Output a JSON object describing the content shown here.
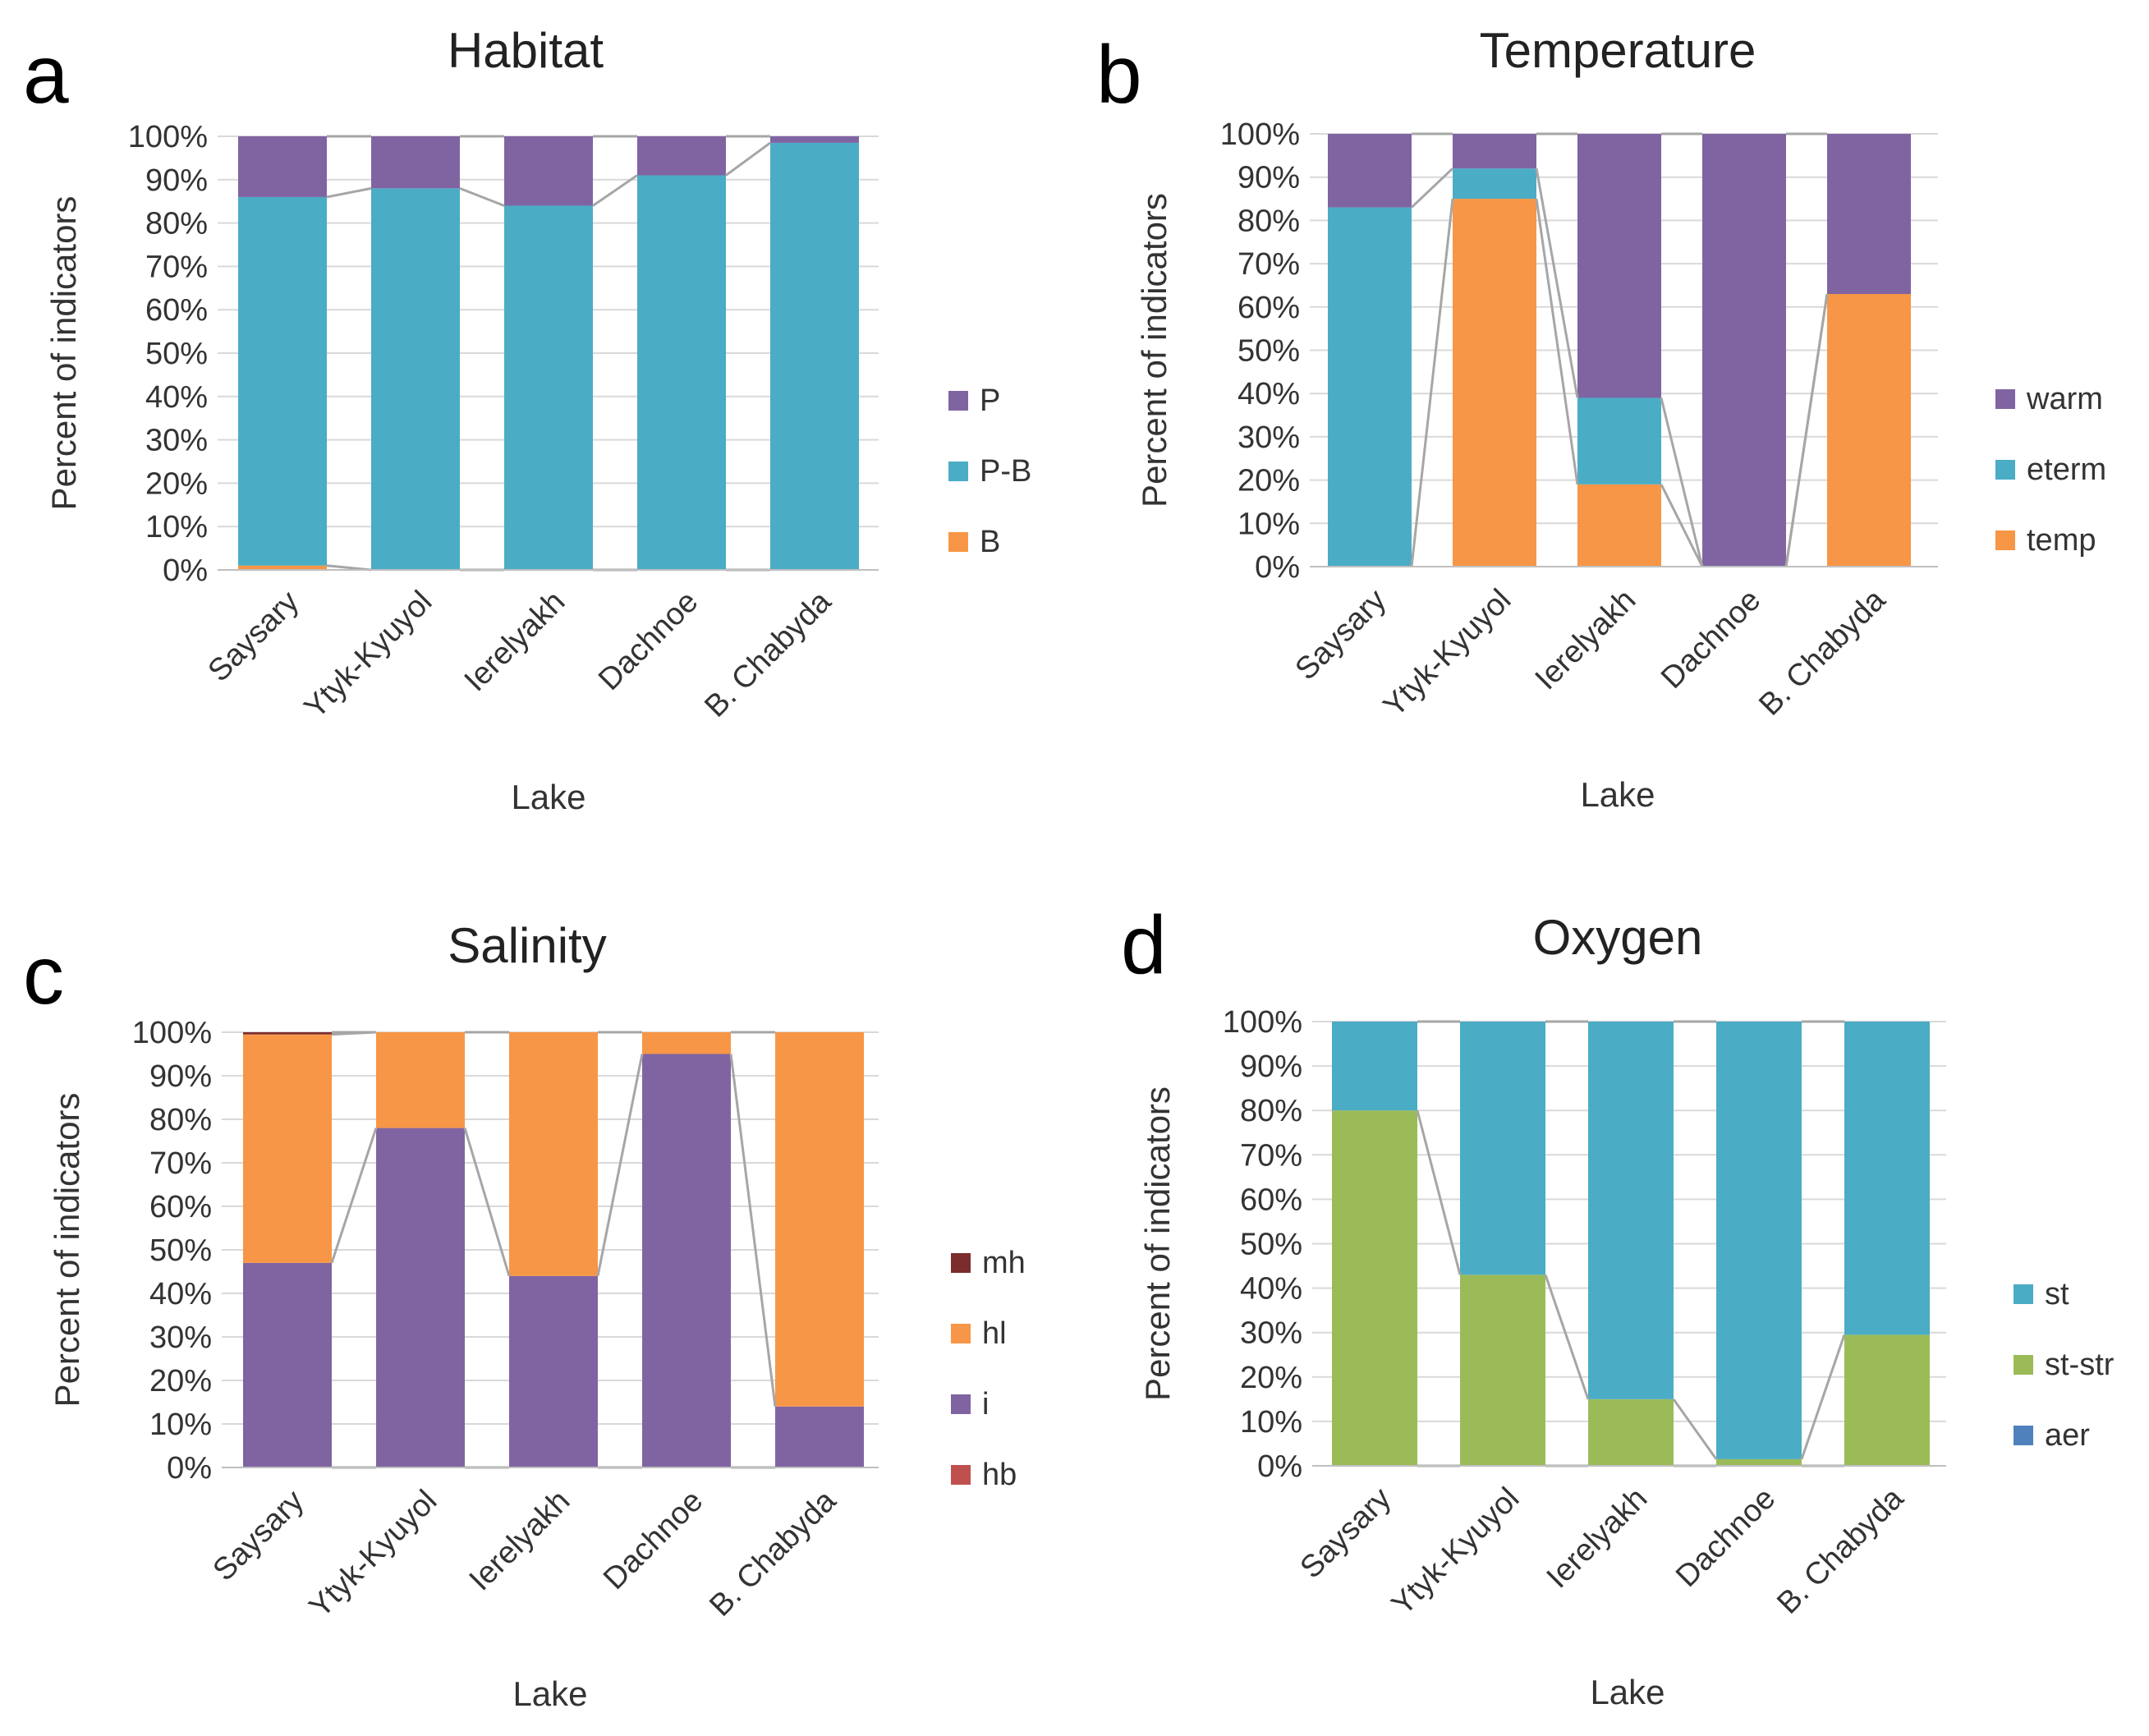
{
  "figure": {
    "panels": [
      "a",
      "b",
      "c",
      "d"
    ]
  },
  "chart_data": [
    {
      "type": "bar",
      "stacked": true,
      "title": "Habitat",
      "xlabel": "Lake",
      "ylabel": "Percent of indicators",
      "ylim": [
        0,
        100
      ],
      "yticks": [
        "0%",
        "10%",
        "20%",
        "30%",
        "40%",
        "50%",
        "60%",
        "70%",
        "80%",
        "90%",
        "100%"
      ],
      "categories": [
        "Saysary",
        "Ytyk-Kyuyol",
        "Ierelyakh",
        "Dachnoe",
        "B. Chabyda"
      ],
      "series": [
        {
          "name": "B",
          "color": "#F79646",
          "values": [
            1,
            0,
            0,
            0,
            0
          ]
        },
        {
          "name": "P-B",
          "color": "#4BACC6",
          "values": [
            85,
            88,
            84,
            91,
            98.5
          ]
        },
        {
          "name": "P",
          "color": "#8064A2",
          "values": [
            14,
            12,
            16,
            9,
            1.5
          ]
        }
      ],
      "legend": [
        "P",
        "P-B",
        "B"
      ],
      "legend_colors": [
        "#8064A2",
        "#4BACC6",
        "#F79646"
      ]
    },
    {
      "type": "bar",
      "stacked": true,
      "title": "Temperature",
      "xlabel": "Lake",
      "ylabel": "Percent of indicators",
      "ylim": [
        0,
        100
      ],
      "yticks": [
        "0%",
        "10%",
        "20%",
        "30%",
        "40%",
        "50%",
        "60%",
        "70%",
        "80%",
        "90%",
        "100%"
      ],
      "categories": [
        "Saysary",
        "Ytyk-Kyuyol",
        "Ierelyakh",
        "Dachnoe",
        "B. Chabyda"
      ],
      "series": [
        {
          "name": "temp",
          "color": "#F79646",
          "values": [
            0,
            85,
            19,
            0,
            63
          ]
        },
        {
          "name": "eterm",
          "color": "#4BACC6",
          "values": [
            83,
            7,
            20,
            0,
            0
          ]
        },
        {
          "name": "warm",
          "color": "#8064A2",
          "values": [
            17,
            8,
            61,
            100,
            37
          ]
        }
      ],
      "legend": [
        "warm",
        "eterm",
        "temp"
      ],
      "legend_colors": [
        "#8064A2",
        "#4BACC6",
        "#F79646"
      ]
    },
    {
      "type": "bar",
      "stacked": true,
      "title": "Salinity",
      "xlabel": "Lake",
      "ylabel": "Percent of indicators",
      "ylim": [
        0,
        100
      ],
      "yticks": [
        "0%",
        "10%",
        "20%",
        "30%",
        "40%",
        "50%",
        "60%",
        "70%",
        "80%",
        "90%",
        "100%"
      ],
      "categories": [
        "Saysary",
        "Ytyk-Kyuyol",
        "Ierelyakh",
        "Dachnoe",
        "B. Chabyda"
      ],
      "series": [
        {
          "name": "hb",
          "color": "#C0504D",
          "values": [
            0,
            0,
            0,
            0,
            0
          ]
        },
        {
          "name": "i",
          "color": "#8064A2",
          "values": [
            47,
            78,
            44,
            95,
            14
          ]
        },
        {
          "name": "hl",
          "color": "#F79646",
          "values": [
            52.5,
            22,
            56,
            5,
            86
          ]
        },
        {
          "name": "mh",
          "color": "#7B2C2C",
          "values": [
            0.5,
            0,
            0,
            0,
            0
          ]
        }
      ],
      "legend": [
        "mh",
        "hl",
        "i",
        "hb"
      ],
      "legend_colors": [
        "#7B2C2C",
        "#F79646",
        "#8064A2",
        "#C0504D"
      ]
    },
    {
      "type": "bar",
      "stacked": true,
      "title": "Oxygen",
      "xlabel": "Lake",
      "ylabel": "Percent of indicators",
      "ylim": [
        0,
        100
      ],
      "yticks": [
        "0%",
        "10%",
        "20%",
        "30%",
        "40%",
        "50%",
        "60%",
        "70%",
        "80%",
        "90%",
        "100%"
      ],
      "categories": [
        "Saysary",
        "Ytyk-Kyuyol",
        "Ierelyakh",
        "Dachnoe",
        "B. Chabyda"
      ],
      "series": [
        {
          "name": "aer",
          "color": "#4F81BD",
          "values": [
            0,
            0,
            0,
            0,
            0
          ]
        },
        {
          "name": "st-str",
          "color": "#9BBB59",
          "values": [
            80,
            43,
            15,
            1.5,
            29.5
          ]
        },
        {
          "name": "st",
          "color": "#4BACC6",
          "values": [
            20,
            57,
            85,
            98.5,
            70.5
          ]
        }
      ],
      "legend": [
        "st",
        "st-str",
        "aer"
      ],
      "legend_colors": [
        "#4BACC6",
        "#9BBB59",
        "#4F81BD"
      ]
    }
  ]
}
